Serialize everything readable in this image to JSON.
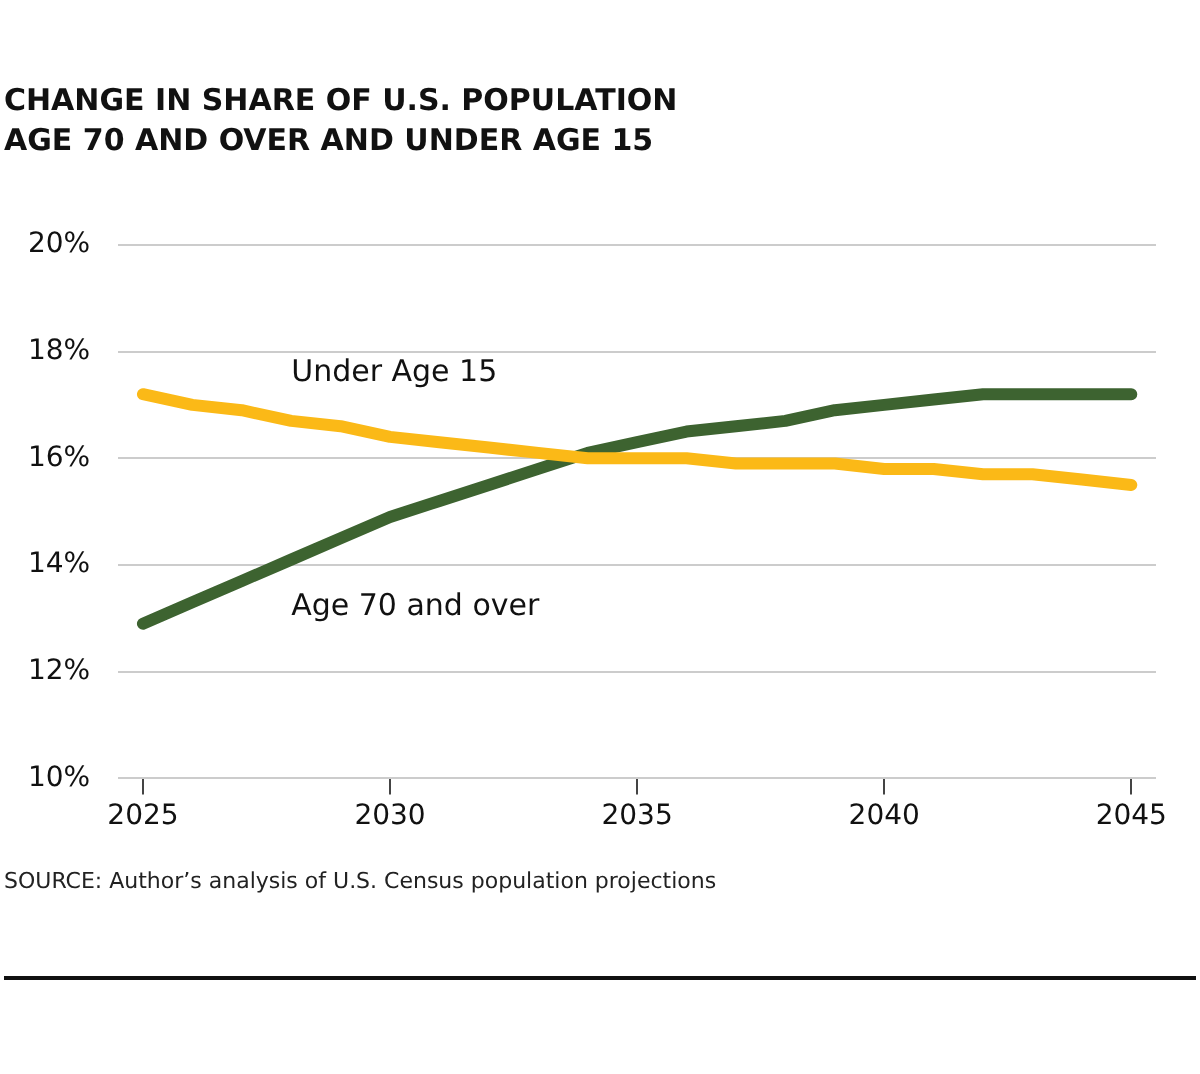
{
  "chart_data": {
    "type": "line",
    "title": "CHANGE IN SHARE OF U.S. POPULATION AGE 70 AND OVER AND UNDER AGE 15",
    "x": [
      2025,
      2026,
      2027,
      2028,
      2029,
      2030,
      2031,
      2032,
      2033,
      2034,
      2035,
      2036,
      2037,
      2038,
      2039,
      2040,
      2041,
      2042,
      2043,
      2044,
      2045
    ],
    "series": [
      {
        "name": "Under Age 15",
        "color": "#fbb917",
        "values": [
          17.2,
          17.0,
          16.9,
          16.7,
          16.6,
          16.4,
          16.3,
          16.2,
          16.1,
          16.0,
          16.0,
          16.0,
          15.9,
          15.9,
          15.9,
          15.8,
          15.8,
          15.7,
          15.7,
          15.6,
          15.5
        ]
      },
      {
        "name": "Age 70 and over",
        "color": "#3d6330",
        "values": [
          12.9,
          13.3,
          13.7,
          14.1,
          14.5,
          14.9,
          15.2,
          15.5,
          15.8,
          16.1,
          16.3,
          16.5,
          16.6,
          16.7,
          16.9,
          17.0,
          17.1,
          17.2,
          17.2,
          17.2,
          17.2
        ]
      }
    ],
    "xlim": [
      2024.5,
      2045.5
    ],
    "xticks": [
      2025,
      2030,
      2035,
      2040,
      2045
    ],
    "ylim": [
      10,
      20
    ],
    "yticks": [
      {
        "value": 10,
        "label": "10%"
      },
      {
        "value": 12,
        "label": "12%"
      },
      {
        "value": 14,
        "label": "14%"
      },
      {
        "value": 16,
        "label": "16%"
      },
      {
        "value": 18,
        "label": "18%"
      },
      {
        "value": 20,
        "label": "20%"
      }
    ],
    "grid": "y",
    "legend": false,
    "marker": "none",
    "line_style": "solid",
    "annotations": [
      "SOURCE: Author’s analysis of U.S. Census population projections"
    ]
  }
}
